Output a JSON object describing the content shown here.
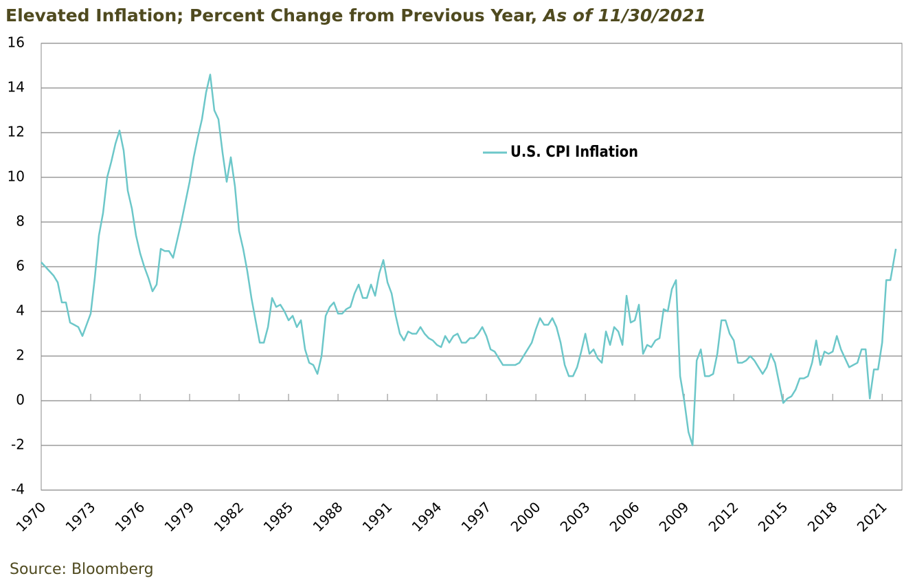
{
  "chart_data": {
    "type": "line",
    "title": "Elevated Inflation; Percent Change from Previous Year,",
    "title_note": "As of 11/30/2021",
    "source": "Source: Bloomberg",
    "x": [
      1970,
      1970.25,
      1970.5,
      1970.75,
      1971,
      1971.25,
      1971.5,
      1971.75,
      1972,
      1972.25,
      1972.5,
      1972.75,
      1973,
      1973.25,
      1973.5,
      1973.75,
      1974,
      1974.25,
      1974.5,
      1974.75,
      1975,
      1975.25,
      1975.5,
      1975.75,
      1976,
      1976.25,
      1976.5,
      1976.75,
      1977,
      1977.25,
      1977.5,
      1977.75,
      1978,
      1978.25,
      1978.5,
      1978.75,
      1979,
      1979.25,
      1979.5,
      1979.75,
      1980,
      1980.25,
      1980.5,
      1980.75,
      1981,
      1981.25,
      1981.5,
      1981.75,
      1982,
      1982.25,
      1982.5,
      1982.75,
      1983,
      1983.25,
      1983.5,
      1983.75,
      1984,
      1984.25,
      1984.5,
      1984.75,
      1985,
      1985.25,
      1985.5,
      1985.75,
      1986,
      1986.25,
      1986.5,
      1986.75,
      1987,
      1987.25,
      1987.5,
      1987.75,
      1988,
      1988.25,
      1988.5,
      1988.75,
      1989,
      1989.25,
      1989.5,
      1989.75,
      1990,
      1990.25,
      1990.5,
      1990.75,
      1991,
      1991.25,
      1991.5,
      1991.75,
      1992,
      1992.25,
      1992.5,
      1992.75,
      1993,
      1993.25,
      1993.5,
      1993.75,
      1994,
      1994.25,
      1994.5,
      1994.75,
      1995,
      1995.25,
      1995.5,
      1995.75,
      1996,
      1996.25,
      1996.5,
      1996.75,
      1997,
      1997.25,
      1997.5,
      1997.75,
      1998,
      1998.25,
      1998.5,
      1998.75,
      1999,
      1999.25,
      1999.5,
      1999.75,
      2000,
      2000.25,
      2000.5,
      2000.75,
      2001,
      2001.25,
      2001.5,
      2001.75,
      2002,
      2002.25,
      2002.5,
      2002.75,
      2003,
      2003.25,
      2003.5,
      2003.75,
      2004,
      2004.25,
      2004.5,
      2004.75,
      2005,
      2005.25,
      2005.5,
      2005.75,
      2006,
      2006.25,
      2006.5,
      2006.75,
      2007,
      2007.25,
      2007.5,
      2007.75,
      2008,
      2008.25,
      2008.5,
      2008.75,
      2009,
      2009.25,
      2009.5,
      2009.75,
      2010,
      2010.25,
      2010.5,
      2010.75,
      2011,
      2011.25,
      2011.5,
      2011.75,
      2012,
      2012.25,
      2012.5,
      2012.75,
      2013,
      2013.25,
      2013.5,
      2013.75,
      2014,
      2014.25,
      2014.5,
      2014.75,
      2015,
      2015.25,
      2015.5,
      2015.75,
      2016,
      2016.25,
      2016.5,
      2016.75,
      2017,
      2017.25,
      2017.5,
      2017.75,
      2018,
      2018.25,
      2018.5,
      2018.75,
      2019,
      2019.25,
      2019.5,
      2019.75,
      2020,
      2020.25,
      2020.5,
      2020.75,
      2021,
      2021.25,
      2021.5,
      2021.83
    ],
    "series": [
      {
        "name": "U.S. CPI Inflation",
        "color": "#6cc7c9",
        "values": [
          6.2,
          6.0,
          5.8,
          5.6,
          5.3,
          4.4,
          4.4,
          3.5,
          3.4,
          3.3,
          2.9,
          3.4,
          3.9,
          5.5,
          7.4,
          8.4,
          10.0,
          10.7,
          11.5,
          12.1,
          11.2,
          9.4,
          8.6,
          7.4,
          6.6,
          6.0,
          5.5,
          4.9,
          5.2,
          6.8,
          6.7,
          6.7,
          6.4,
          7.2,
          8.0,
          8.9,
          9.8,
          10.9,
          11.8,
          12.6,
          13.8,
          14.6,
          13.0,
          12.6,
          11.1,
          9.8,
          10.9,
          9.6,
          7.6,
          6.8,
          5.8,
          4.6,
          3.6,
          2.6,
          2.6,
          3.3,
          4.6,
          4.2,
          4.3,
          4.0,
          3.6,
          3.8,
          3.3,
          3.6,
          2.3,
          1.7,
          1.6,
          1.2,
          2.0,
          3.8,
          4.2,
          4.4,
          3.9,
          3.9,
          4.1,
          4.2,
          4.8,
          5.2,
          4.6,
          4.6,
          5.2,
          4.7,
          5.7,
          6.3,
          5.3,
          4.8,
          3.8,
          3.0,
          2.7,
          3.1,
          3.0,
          3.0,
          3.3,
          3.0,
          2.8,
          2.7,
          2.5,
          2.4,
          2.9,
          2.6,
          2.9,
          3.0,
          2.6,
          2.6,
          2.8,
          2.8,
          3.0,
          3.3,
          2.9,
          2.3,
          2.2,
          1.9,
          1.6,
          1.6,
          1.6,
          1.6,
          1.7,
          2.0,
          2.3,
          2.6,
          3.2,
          3.7,
          3.4,
          3.4,
          3.7,
          3.3,
          2.6,
          1.6,
          1.1,
          1.1,
          1.5,
          2.2,
          3.0,
          2.1,
          2.3,
          1.9,
          1.7,
          3.1,
          2.5,
          3.3,
          3.1,
          2.5,
          4.7,
          3.5,
          3.6,
          4.3,
          2.1,
          2.5,
          2.4,
          2.7,
          2.8,
          4.1,
          4.0,
          5.0,
          5.4,
          1.1,
          0.0,
          -1.4,
          -2.0,
          1.8,
          2.3,
          1.1,
          1.1,
          1.2,
          2.1,
          3.6,
          3.6,
          3.0,
          2.7,
          1.7,
          1.7,
          1.8,
          2.0,
          1.8,
          1.5,
          1.2,
          1.5,
          2.1,
          1.7,
          0.8,
          -0.1,
          0.1,
          0.2,
          0.5,
          1.0,
          1.0,
          1.1,
          1.7,
          2.7,
          1.6,
          2.2,
          2.1,
          2.2,
          2.9,
          2.3,
          1.9,
          1.5,
          1.6,
          1.7,
          2.3,
          2.3,
          0.1,
          1.4,
          1.4,
          2.6,
          5.4,
          5.4,
          6.8
        ]
      }
    ],
    "xlim": [
      1970,
      2022.2
    ],
    "xticks": [
      1970,
      1973,
      1976,
      1979,
      1982,
      1985,
      1988,
      1991,
      1994,
      1997,
      2000,
      2003,
      2006,
      2009,
      2012,
      2015,
      2018,
      2021
    ],
    "ylim": [
      -4,
      16
    ],
    "yticks": [
      -4,
      -2,
      0,
      2,
      4,
      6,
      8,
      10,
      12,
      14,
      16
    ],
    "grid": true
  }
}
